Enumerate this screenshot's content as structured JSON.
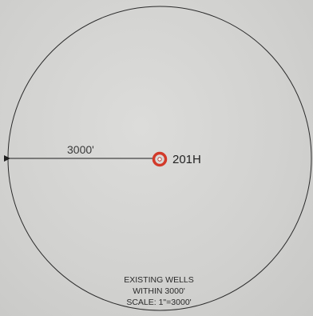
{
  "diagram": {
    "radius_label": "3000'",
    "well": {
      "label": "201H",
      "ring_color": "#d23a2a"
    },
    "note": {
      "line1": "EXISTING WELLS",
      "line2": "WITHIN 3000'",
      "line3": "SCALE: 1\"=3000'"
    },
    "colors": {
      "circle": "#2b2b2b",
      "text": "#222222"
    }
  }
}
